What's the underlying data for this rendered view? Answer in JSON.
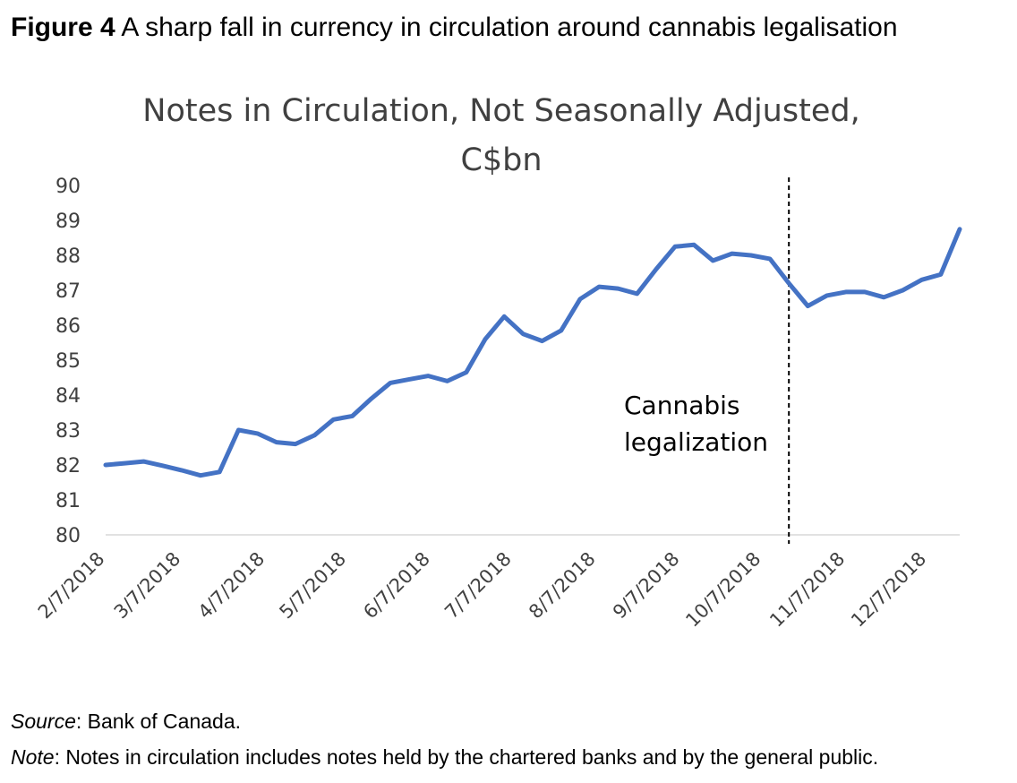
{
  "figure": {
    "label": "Figure 4",
    "caption": "A sharp fall in currency in circulation around cannabis legalisation"
  },
  "chart_data": {
    "type": "line",
    "title_line1": "Notes in Circulation, Not Seasonally Adjusted,",
    "title_line2": "C$bn",
    "ylim": [
      80,
      90
    ],
    "y_ticks": [
      80,
      81,
      82,
      83,
      84,
      85,
      86,
      87,
      88,
      89,
      90
    ],
    "x_tick_labels": [
      "2/7/2018",
      "3/7/2018",
      "4/7/2018",
      "5/7/2018",
      "6/7/2018",
      "7/7/2018",
      "8/7/2018",
      "9/7/2018",
      "10/7/2018",
      "11/7/2018",
      "12/7/2018"
    ],
    "series": [
      {
        "color": "#4472C4",
        "x": [
          "2/7/2018",
          "2/14/2018",
          "2/21/2018",
          "2/28/2018",
          "3/7/2018",
          "3/14/2018",
          "3/21/2018",
          "3/28/2018",
          "4/4/2018",
          "4/11/2018",
          "4/18/2018",
          "4/25/2018",
          "5/2/2018",
          "5/9/2018",
          "5/16/2018",
          "5/23/2018",
          "5/30/2018",
          "6/6/2018",
          "6/13/2018",
          "6/20/2018",
          "6/27/2018",
          "7/4/2018",
          "7/11/2018",
          "7/18/2018",
          "7/25/2018",
          "8/1/2018",
          "8/8/2018",
          "8/15/2018",
          "8/22/2018",
          "8/29/2018",
          "9/5/2018",
          "9/12/2018",
          "9/19/2018",
          "9/26/2018",
          "10/3/2018",
          "10/10/2018",
          "10/17/2018",
          "10/24/2018",
          "10/31/2018",
          "11/7/2018",
          "11/14/2018",
          "11/21/2018",
          "11/28/2018",
          "12/5/2018",
          "12/12/2018",
          "12/19/2018"
        ],
        "values": [
          82.0,
          82.05,
          82.1,
          81.98,
          81.85,
          81.7,
          81.8,
          83.0,
          82.9,
          82.65,
          82.6,
          82.85,
          83.3,
          83.4,
          83.9,
          84.35,
          84.45,
          84.55,
          84.4,
          84.65,
          85.6,
          86.25,
          85.75,
          85.55,
          85.85,
          86.75,
          87.1,
          87.05,
          86.9,
          87.6,
          88.25,
          88.3,
          87.85,
          88.05,
          88.0,
          87.9,
          87.2,
          86.55,
          86.85,
          86.95,
          86.95,
          86.8,
          87.0,
          87.3,
          87.45,
          88.75
        ]
      }
    ],
    "annotation": {
      "x": "10/17/2018",
      "line1": "Cannabis",
      "line2": "legalization"
    },
    "grid": false,
    "legend": "none"
  },
  "footnotes": {
    "source_key": "Source",
    "source_text": ": Bank of Canada.",
    "note_key": "Note",
    "note_text": ": Notes in circulation includes notes held by the chartered banks and by the general public."
  }
}
